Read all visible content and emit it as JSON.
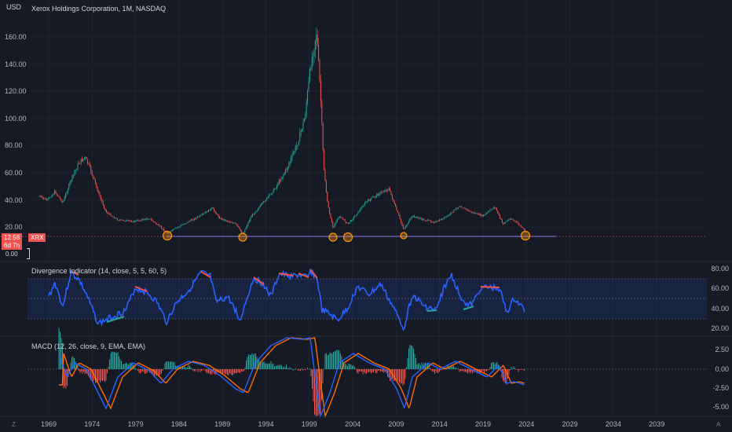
{
  "header": {
    "currency": "USD",
    "symbol_title": "Xerox Holdings Corporation, 1M, NASDAQ"
  },
  "price_panel": {
    "y_labels": [
      "160.00",
      "140.00",
      "120.00",
      "100.00",
      "80.00",
      "60.00",
      "40.00",
      "20.00",
      "0.00"
    ],
    "last_price": "12.58",
    "ticker": "XRX",
    "countdown": "6d 7h",
    "zero_label": "0.00"
  },
  "divergence_panel": {
    "title": "Divergence Indicator (14, close, 5, 5, 60, 5)",
    "y_labels": [
      "80.00",
      "60.00",
      "40.00",
      "20.00"
    ]
  },
  "macd_panel": {
    "title": "MACD (12, 26, close, 9, EMA, EMA)",
    "y_labels": [
      "2.50",
      "0.00",
      "-2.50",
      "-5.00"
    ]
  },
  "time_axis": {
    "labels": [
      "1969",
      "1974",
      "1979",
      "1984",
      "1989",
      "1994",
      "1999",
      "2004",
      "2009",
      "2014",
      "2019",
      "2024",
      "2029",
      "2034",
      "2039"
    ]
  },
  "corners": {
    "left": "Z",
    "right": "A"
  },
  "colors": {
    "background": "#161a25",
    "up": "#26a69a",
    "down": "#ef5350",
    "rsi": "#2962ff",
    "macd": "#2962ff",
    "signal": "#ff6d00"
  }
}
